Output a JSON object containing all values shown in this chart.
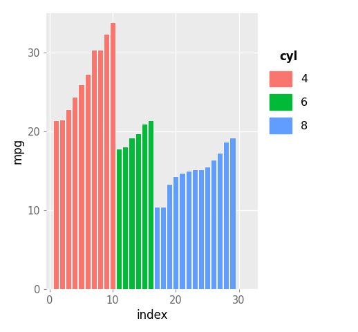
{
  "xlabel": "index",
  "ylabel": "mpg",
  "legend_title": "cyl",
  "plot_bg": "#EBEBEB",
  "fig_bg": "#FFFFFF",
  "grid_color": "#FFFFFF",
  "bar_color_4": "#F8766D",
  "bar_color_6": "#00BA38",
  "bar_color_8": "#619CFF",
  "legend_labels": [
    "4",
    "6",
    "8"
  ],
  "bar_edge_color": "white",
  "bar_edge_width": 0.6,
  "ylim": [
    0,
    35
  ],
  "yticks": [
    0,
    10,
    20,
    30
  ],
  "xticks": [
    0,
    10,
    20,
    30
  ],
  "xlim": [
    -0.5,
    33
  ],
  "values_4": [
    21.4,
    21.5,
    22.8,
    24.4,
    26.0,
    27.3,
    30.4,
    30.4,
    32.4,
    33.9
  ],
  "values_6": [
    17.8,
    18.1,
    19.2,
    19.7,
    21.0,
    21.4
  ],
  "values_8": [
    10.4,
    10.4,
    13.3,
    14.3,
    14.7,
    15.0,
    15.2,
    15.2,
    15.5,
    16.4,
    17.3,
    18.7,
    19.2
  ],
  "figsize": [
    5.18,
    4.8
  ],
  "dpi": 100
}
